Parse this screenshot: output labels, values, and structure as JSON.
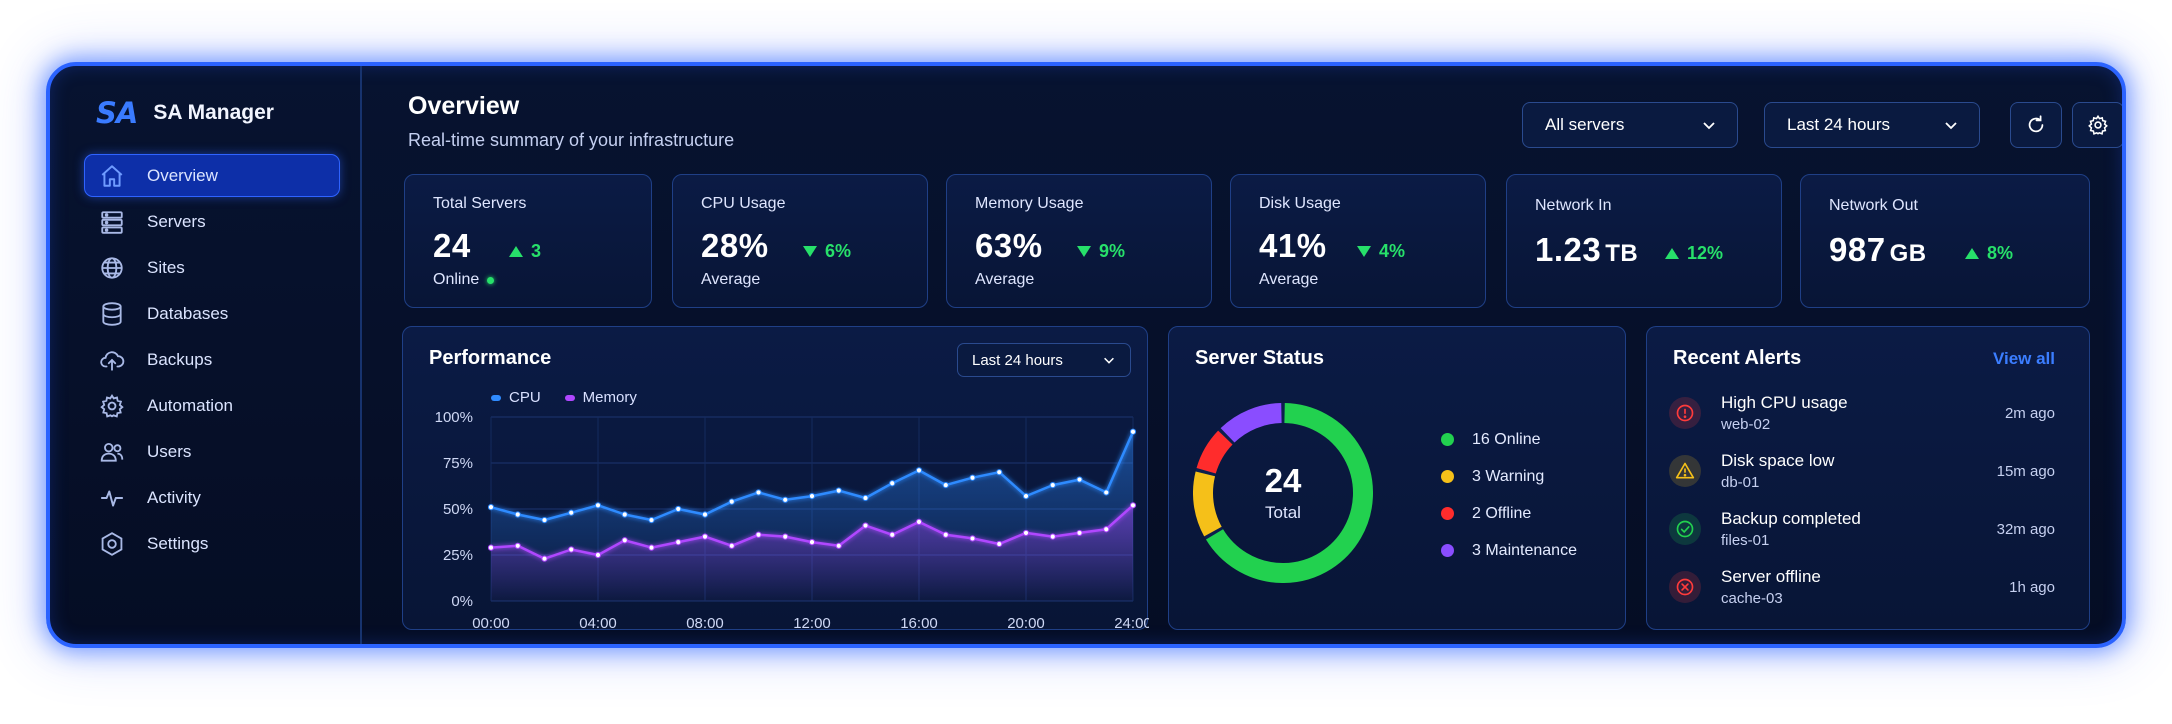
{
  "brand": {
    "logo": "SA",
    "name": "SA Manager"
  },
  "sidebar": {
    "items": [
      {
        "label": "Overview",
        "icon": "home-icon",
        "active": true
      },
      {
        "label": "Servers",
        "icon": "servers-icon"
      },
      {
        "label": "Sites",
        "icon": "globe-icon"
      },
      {
        "label": "Databases",
        "icon": "database-icon"
      },
      {
        "label": "Backups",
        "icon": "cloud-upload-icon"
      },
      {
        "label": "Automation",
        "icon": "gear-icon"
      },
      {
        "label": "Users",
        "icon": "users-icon"
      },
      {
        "label": "Activity",
        "icon": "activity-icon"
      },
      {
        "label": "Settings",
        "icon": "hex-settings-icon"
      }
    ]
  },
  "header": {
    "title": "Overview",
    "subtitle": "Real-time summary of your infrastructure",
    "server_filter": "All servers",
    "time_range": "Last 24 hours",
    "refresh_icon": "refresh-icon",
    "settings_icon": "gear-icon"
  },
  "stats": [
    {
      "label": "Total Servers",
      "value": "24",
      "unit": "",
      "trend": "3",
      "trend_dir": "up",
      "sub": "Online"
    },
    {
      "label": "CPU Usage",
      "value": "28%",
      "unit": "",
      "trend": "6%",
      "trend_dir": "down",
      "sub": "Average"
    },
    {
      "label": "Memory Usage",
      "value": "63%",
      "unit": "",
      "trend": "9%",
      "trend_dir": "down",
      "sub": "Average"
    },
    {
      "label": "Disk Usage",
      "value": "41%",
      "unit": "",
      "trend": "4%",
      "trend_dir": "down",
      "sub": "Average"
    },
    {
      "label": "Network In",
      "value": "1.23",
      "unit": "TB",
      "trend": "12%",
      "trend_dir": "up",
      "sub": ""
    },
    {
      "label": "Network Out",
      "value": "987",
      "unit": "GB",
      "trend": "8%",
      "trend_dir": "up",
      "sub": ""
    }
  ],
  "performance": {
    "title": "Performance",
    "range": "Last 24 hours"
  },
  "chart_data": {
    "type": "line",
    "x": [
      0,
      1,
      2,
      3,
      4,
      5,
      6,
      7,
      8,
      9,
      10,
      11,
      12,
      13,
      14,
      15,
      16,
      17,
      18,
      19,
      20,
      21,
      22,
      23,
      24
    ],
    "series": [
      {
        "name": "CPU",
        "color": "#2f8bff",
        "values": [
          51,
          47,
          44,
          48,
          52,
          47,
          44,
          50,
          47,
          54,
          59,
          55,
          57,
          60,
          56,
          64,
          71,
          63,
          67,
          70,
          57,
          63,
          66,
          59,
          92
        ]
      },
      {
        "name": "Memory",
        "color": "#b047ff",
        "values": [
          29,
          30,
          23,
          28,
          25,
          33,
          29,
          32,
          35,
          30,
          36,
          35,
          32,
          30,
          41,
          36,
          43,
          36,
          34,
          31,
          37,
          35,
          37,
          39,
          52
        ]
      }
    ],
    "x_ticks": [
      "00:00",
      "04:00",
      "08:00",
      "12:00",
      "16:00",
      "20:00",
      "24:00"
    ],
    "y_ticks": [
      "0%",
      "25%",
      "50%",
      "75%",
      "100%"
    ],
    "ylim": [
      0,
      100
    ],
    "xlim": [
      0,
      24
    ],
    "legend": "top-left",
    "grid": true
  },
  "server_status": {
    "title": "Server Status",
    "total": "24",
    "total_label": "Total",
    "segments": [
      {
        "label": "16 Online",
        "value": 16,
        "color": "#22d14f"
      },
      {
        "label": "3 Warning",
        "value": 3,
        "color": "#f5c019"
      },
      {
        "label": "2 Offline",
        "value": 2,
        "color": "#ff2c2c"
      },
      {
        "label": "3 Maintenance",
        "value": 3,
        "color": "#8a4dff"
      }
    ]
  },
  "alerts": {
    "title": "Recent Alerts",
    "view_all": "View all",
    "items": [
      {
        "title": "High CPU usage",
        "host": "web-02",
        "time": "2m ago",
        "icon": "alert-circle-icon",
        "color": "#ff3b3b"
      },
      {
        "title": "Disk space low",
        "host": "db-01",
        "time": "15m ago",
        "icon": "warning-triangle-icon",
        "color": "#f5c019"
      },
      {
        "title": "Backup completed",
        "host": "files-01",
        "time": "32m ago",
        "icon": "check-circle-icon",
        "color": "#22d14f"
      },
      {
        "title": "Server offline",
        "host": "cache-03",
        "time": "1h ago",
        "icon": "x-circle-icon",
        "color": "#ff3b3b"
      }
    ]
  }
}
